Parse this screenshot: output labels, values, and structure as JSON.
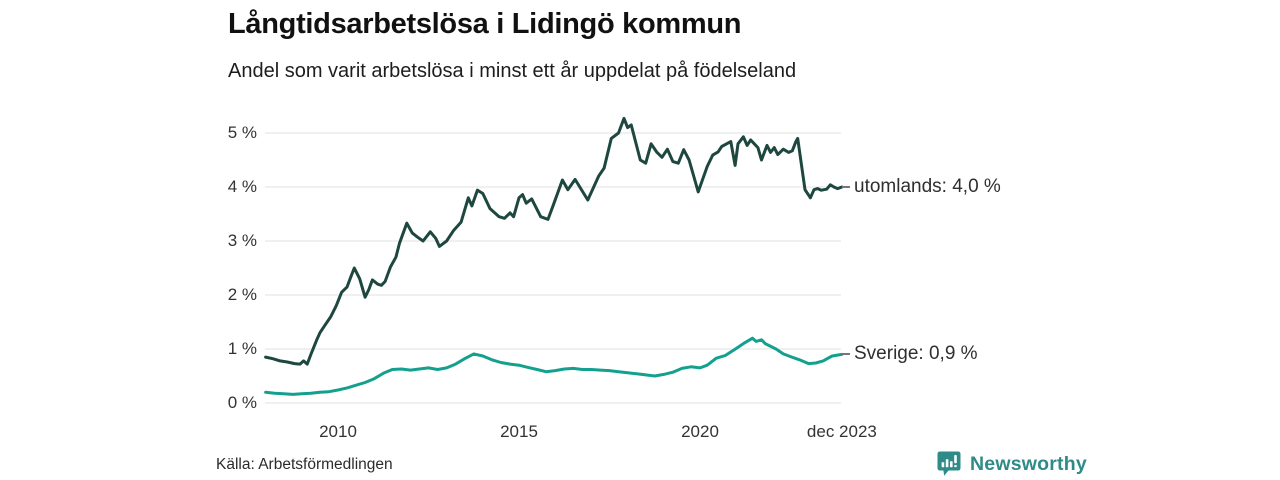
{
  "header": {
    "title": "Långtidsarbetslösa i Lidingö kommun",
    "subtitle": "Andel som varit arbetslösa i minst ett år uppdelat på födelseland"
  },
  "source_note": "Källa: Arbetsförmedlingen",
  "branding": {
    "name": "Newsworthy",
    "logo_icon": "speech-bubble-bar-chart",
    "color": "#2e8b87"
  },
  "colors": {
    "grid": "#e1e1e1",
    "tick_text": "#333333",
    "title_text": "#111111",
    "series_foreign": "#1d473f",
    "series_sweden": "#13a08f"
  },
  "chart_data": {
    "type": "line",
    "title": "Långtidsarbetslösa i Lidingö kommun",
    "subtitle": "Andel som varit arbetslösa i minst ett år uppdelat på födelseland",
    "xlabel": "",
    "ylabel": "",
    "x_range": [
      2008.0,
      2023.92
    ],
    "ylim": [
      0,
      5.5
    ],
    "grid": "horizontal",
    "legend_position": "end-of-line-labels",
    "yticks": [
      {
        "value": 0,
        "label": "0 %"
      },
      {
        "value": 1,
        "label": "1 %"
      },
      {
        "value": 2,
        "label": "2 %"
      },
      {
        "value": 3,
        "label": "3 %"
      },
      {
        "value": 4,
        "label": "4 %"
      },
      {
        "value": 5,
        "label": "5 %"
      }
    ],
    "xticks": [
      {
        "year": 2010,
        "label": "2010"
      },
      {
        "year": 2015,
        "label": "2015"
      },
      {
        "year": 2020,
        "label": "2020"
      },
      {
        "year": 2023.92,
        "label": "dec 2023"
      }
    ],
    "series": [
      {
        "name": "utomlands",
        "color": "#1d473f",
        "end_label": "utomlands: 4,0 %",
        "end_value": 4.0,
        "points": [
          [
            2008.0,
            0.85
          ],
          [
            2008.2,
            0.82
          ],
          [
            2008.4,
            0.78
          ],
          [
            2008.6,
            0.76
          ],
          [
            2008.8,
            0.73
          ],
          [
            2008.95,
            0.72
          ],
          [
            2009.05,
            0.78
          ],
          [
            2009.15,
            0.72
          ],
          [
            2009.25,
            0.9
          ],
          [
            2009.4,
            1.15
          ],
          [
            2009.5,
            1.3
          ],
          [
            2009.65,
            1.45
          ],
          [
            2009.8,
            1.6
          ],
          [
            2009.95,
            1.8
          ],
          [
            2010.1,
            2.05
          ],
          [
            2010.25,
            2.15
          ],
          [
            2010.35,
            2.33
          ],
          [
            2010.45,
            2.5
          ],
          [
            2010.6,
            2.3
          ],
          [
            2010.75,
            1.96
          ],
          [
            2010.85,
            2.1
          ],
          [
            2010.95,
            2.28
          ],
          [
            2011.1,
            2.2
          ],
          [
            2011.2,
            2.18
          ],
          [
            2011.3,
            2.25
          ],
          [
            2011.45,
            2.52
          ],
          [
            2011.6,
            2.7
          ],
          [
            2011.7,
            2.96
          ],
          [
            2011.9,
            3.33
          ],
          [
            2012.05,
            3.15
          ],
          [
            2012.2,
            3.07
          ],
          [
            2012.35,
            3.0
          ],
          [
            2012.55,
            3.17
          ],
          [
            2012.7,
            3.05
          ],
          [
            2012.8,
            2.9
          ],
          [
            2013.0,
            3.0
          ],
          [
            2013.2,
            3.2
          ],
          [
            2013.4,
            3.35
          ],
          [
            2013.6,
            3.8
          ],
          [
            2013.7,
            3.65
          ],
          [
            2013.85,
            3.94
          ],
          [
            2014.0,
            3.88
          ],
          [
            2014.2,
            3.6
          ],
          [
            2014.45,
            3.45
          ],
          [
            2014.6,
            3.42
          ],
          [
            2014.75,
            3.52
          ],
          [
            2014.85,
            3.45
          ],
          [
            2015.0,
            3.8
          ],
          [
            2015.1,
            3.86
          ],
          [
            2015.2,
            3.7
          ],
          [
            2015.35,
            3.78
          ],
          [
            2015.6,
            3.45
          ],
          [
            2015.8,
            3.4
          ],
          [
            2015.95,
            3.67
          ],
          [
            2016.2,
            4.13
          ],
          [
            2016.35,
            3.95
          ],
          [
            2016.55,
            4.14
          ],
          [
            2016.9,
            3.76
          ],
          [
            2017.2,
            4.2
          ],
          [
            2017.35,
            4.35
          ],
          [
            2017.55,
            4.9
          ],
          [
            2017.75,
            5.0
          ],
          [
            2017.9,
            5.27
          ],
          [
            2018.0,
            5.1
          ],
          [
            2018.1,
            5.15
          ],
          [
            2018.35,
            4.5
          ],
          [
            2018.5,
            4.44
          ],
          [
            2018.65,
            4.8
          ],
          [
            2018.8,
            4.65
          ],
          [
            2018.95,
            4.55
          ],
          [
            2019.1,
            4.7
          ],
          [
            2019.25,
            4.47
          ],
          [
            2019.4,
            4.44
          ],
          [
            2019.55,
            4.69
          ],
          [
            2019.7,
            4.5
          ],
          [
            2019.95,
            3.91
          ],
          [
            2020.2,
            4.38
          ],
          [
            2020.35,
            4.59
          ],
          [
            2020.5,
            4.65
          ],
          [
            2020.6,
            4.75
          ],
          [
            2020.85,
            4.84
          ],
          [
            2020.97,
            4.4
          ],
          [
            2021.05,
            4.8
          ],
          [
            2021.2,
            4.93
          ],
          [
            2021.3,
            4.77
          ],
          [
            2021.4,
            4.87
          ],
          [
            2021.5,
            4.8
          ],
          [
            2021.6,
            4.73
          ],
          [
            2021.7,
            4.5
          ],
          [
            2021.85,
            4.77
          ],
          [
            2021.95,
            4.64
          ],
          [
            2022.05,
            4.73
          ],
          [
            2022.15,
            4.6
          ],
          [
            2022.3,
            4.7
          ],
          [
            2022.45,
            4.64
          ],
          [
            2022.55,
            4.67
          ],
          [
            2022.65,
            4.84
          ],
          [
            2022.7,
            4.9
          ],
          [
            2022.9,
            3.95
          ],
          [
            2023.05,
            3.8
          ],
          [
            2023.15,
            3.95
          ],
          [
            2023.25,
            3.97
          ],
          [
            2023.35,
            3.94
          ],
          [
            2023.5,
            3.96
          ],
          [
            2023.6,
            4.04
          ],
          [
            2023.7,
            4.0
          ],
          [
            2023.8,
            3.97
          ],
          [
            2023.92,
            4.0
          ]
        ]
      },
      {
        "name": "Sverige",
        "color": "#13a08f",
        "end_label": "Sverige: 0,9 %",
        "end_value": 0.9,
        "points": [
          [
            2008.0,
            0.2
          ],
          [
            2008.25,
            0.18
          ],
          [
            2008.5,
            0.17
          ],
          [
            2008.75,
            0.16
          ],
          [
            2009.0,
            0.17
          ],
          [
            2009.25,
            0.18
          ],
          [
            2009.5,
            0.2
          ],
          [
            2009.75,
            0.21
          ],
          [
            2010.0,
            0.24
          ],
          [
            2010.25,
            0.28
          ],
          [
            2010.5,
            0.33
          ],
          [
            2010.75,
            0.38
          ],
          [
            2011.0,
            0.45
          ],
          [
            2011.25,
            0.55
          ],
          [
            2011.5,
            0.62
          ],
          [
            2011.75,
            0.63
          ],
          [
            2012.0,
            0.61
          ],
          [
            2012.25,
            0.63
          ],
          [
            2012.5,
            0.65
          ],
          [
            2012.75,
            0.62
          ],
          [
            2013.0,
            0.65
          ],
          [
            2013.25,
            0.72
          ],
          [
            2013.5,
            0.82
          ],
          [
            2013.75,
            0.91
          ],
          [
            2014.0,
            0.87
          ],
          [
            2014.25,
            0.8
          ],
          [
            2014.5,
            0.75
          ],
          [
            2014.75,
            0.72
          ],
          [
            2015.0,
            0.7
          ],
          [
            2015.25,
            0.66
          ],
          [
            2015.5,
            0.62
          ],
          [
            2015.75,
            0.58
          ],
          [
            2016.0,
            0.6
          ],
          [
            2016.25,
            0.63
          ],
          [
            2016.5,
            0.64
          ],
          [
            2016.75,
            0.62
          ],
          [
            2017.0,
            0.62
          ],
          [
            2017.25,
            0.61
          ],
          [
            2017.5,
            0.6
          ],
          [
            2017.75,
            0.58
          ],
          [
            2018.0,
            0.56
          ],
          [
            2018.25,
            0.54
          ],
          [
            2018.5,
            0.52
          ],
          [
            2018.75,
            0.5
          ],
          [
            2019.0,
            0.53
          ],
          [
            2019.25,
            0.57
          ],
          [
            2019.5,
            0.64
          ],
          [
            2019.75,
            0.67
          ],
          [
            2020.0,
            0.65
          ],
          [
            2020.2,
            0.7
          ],
          [
            2020.45,
            0.83
          ],
          [
            2020.7,
            0.88
          ],
          [
            2021.0,
            1.01
          ],
          [
            2021.2,
            1.1
          ],
          [
            2021.45,
            1.2
          ],
          [
            2021.55,
            1.14
          ],
          [
            2021.7,
            1.17
          ],
          [
            2021.8,
            1.1
          ],
          [
            2022.1,
            1.0
          ],
          [
            2022.3,
            0.91
          ],
          [
            2022.5,
            0.86
          ],
          [
            2022.75,
            0.8
          ],
          [
            2023.0,
            0.73
          ],
          [
            2023.2,
            0.74
          ],
          [
            2023.4,
            0.78
          ],
          [
            2023.65,
            0.87
          ],
          [
            2023.92,
            0.9
          ]
        ]
      }
    ]
  }
}
